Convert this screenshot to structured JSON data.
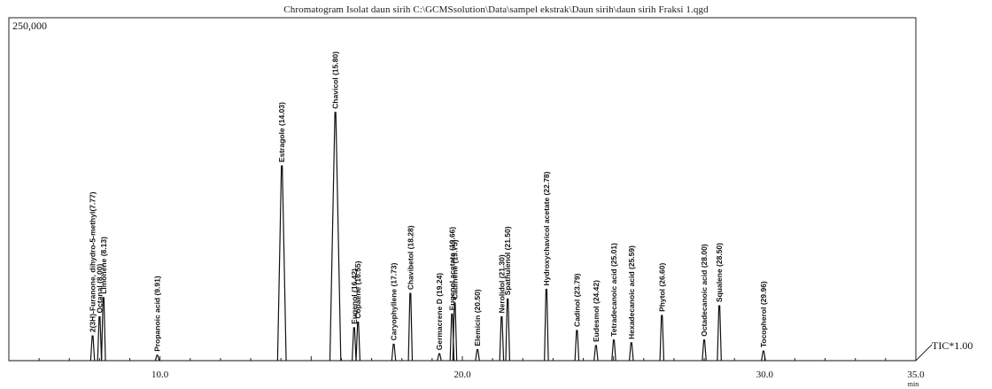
{
  "chart_data": {
    "type": "line",
    "title": "Chromatogram Isolat daun sirih C:\\GCMSsolution\\Data\\sampel ekstrak\\Daun sirih\\daun sirih Fraksi 1.qgd",
    "ymax_label": "250,000",
    "series_label": "TIC*1.00",
    "x_unit": "min",
    "xlim": [
      5.0,
      35.0
    ],
    "ylim": [
      0,
      250000
    ],
    "x_ticks": [
      10.0,
      20.0,
      30.0,
      35.0
    ],
    "x_tick_labels": [
      "10.0",
      "20.0",
      "30.0",
      "35.0"
    ],
    "peaks": [
      {
        "x": 7.77,
        "y": 18000
      },
      {
        "x": 8.0,
        "y": 32000
      },
      {
        "x": 8.13,
        "y": 46000
      },
      {
        "x": 9.91,
        "y": 4000
      },
      {
        "x": 14.03,
        "y": 142000
      },
      {
        "x": 15.8,
        "y": 181000
      },
      {
        "x": 16.42,
        "y": 24000
      },
      {
        "x": 16.55,
        "y": 28000
      },
      {
        "x": 17.73,
        "y": 12000
      },
      {
        "x": 18.28,
        "y": 49000
      },
      {
        "x": 19.24,
        "y": 5000
      },
      {
        "x": 19.66,
        "y": 34000
      },
      {
        "x": 19.75,
        "y": 42000
      },
      {
        "x": 20.5,
        "y": 8000
      },
      {
        "x": 21.3,
        "y": 32000
      },
      {
        "x": 21.5,
        "y": 45000
      },
      {
        "x": 22.78,
        "y": 52000
      },
      {
        "x": 23.79,
        "y": 22000
      },
      {
        "x": 24.42,
        "y": 11000
      },
      {
        "x": 25.01,
        "y": 15000
      },
      {
        "x": 25.59,
        "y": 13000
      },
      {
        "x": 26.6,
        "y": 33000
      },
      {
        "x": 28.0,
        "y": 15000
      },
      {
        "x": 28.5,
        "y": 40000
      },
      {
        "x": 29.96,
        "y": 7000
      }
    ],
    "peak_labels": [
      {
        "x": 7.77,
        "text": "2(3H)-Furanone, dihydro-5-methyl(7.77)"
      },
      {
        "x": 8.0,
        "text": "Octanal (8.00)"
      },
      {
        "x": 8.13,
        "text": "Limonene (8.13)"
      },
      {
        "x": 9.91,
        "text": "Propanoic acid (9.91)"
      },
      {
        "x": 14.03,
        "text": "Estragole (14.03)"
      },
      {
        "x": 15.8,
        "text": "Chavicol (15.80)"
      },
      {
        "x": 16.42,
        "text": "Eugenol (16.42)"
      },
      {
        "x": 16.55,
        "text": "Copaene (16.55)"
      },
      {
        "x": 17.73,
        "text": "Caryophyllene (17.73)"
      },
      {
        "x": 18.28,
        "text": "Chavibetol (18.28)"
      },
      {
        "x": 19.24,
        "text": "Germacrene D (19.24)"
      },
      {
        "x": 19.66,
        "text": "Eugenol acetate (19.66)"
      },
      {
        "x": 19.75,
        "text": "Cadinene (19.75)"
      },
      {
        "x": 20.5,
        "text": "Elemicin (20.50)"
      },
      {
        "x": 21.3,
        "text": "Nerolidol (21.30)"
      },
      {
        "x": 21.5,
        "text": "Spathulenol (21.50)"
      },
      {
        "x": 22.78,
        "text": "Hydroxychavicol acetate (22.78)"
      },
      {
        "x": 23.79,
        "text": "Cadinol (23.79)"
      },
      {
        "x": 24.42,
        "text": "Eudesmol (24.42)"
      },
      {
        "x": 25.01,
        "text": "Tetradecanoic acid (25.01)"
      },
      {
        "x": 25.59,
        "text": "Hexadecanoic acid (25.59)"
      },
      {
        "x": 26.6,
        "text": "Phytol (26.60)"
      },
      {
        "x": 28.0,
        "text": "Octadecanoic acid (28.00)"
      },
      {
        "x": 28.5,
        "text": "Squalene (28.50)"
      },
      {
        "x": 29.96,
        "text": "Tocopherol (29.96)"
      }
    ]
  }
}
